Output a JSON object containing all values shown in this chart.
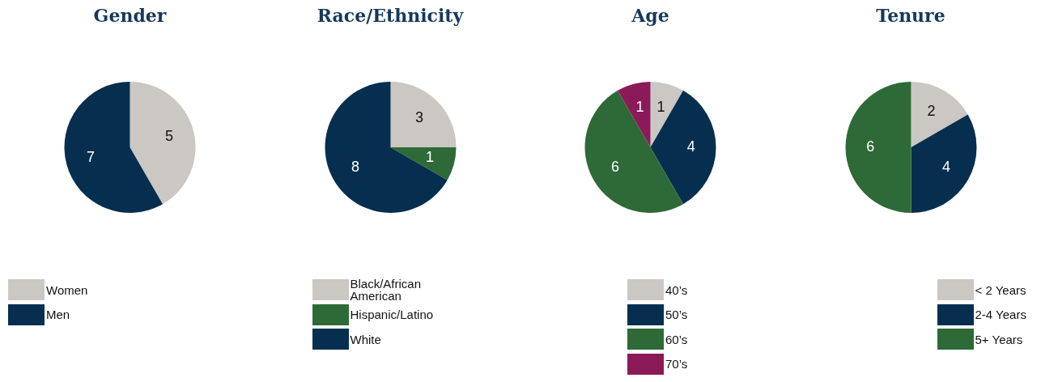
{
  "chart_data": [
    {
      "type": "pie",
      "title": "Gender",
      "categories": [
        "Women",
        "Men"
      ],
      "values": [
        5,
        7
      ],
      "colors": [
        "#cbc7c2",
        "#062f4f"
      ],
      "data_labels": true,
      "legend": "bottom"
    },
    {
      "type": "pie",
      "title": "Race/Ethnicity",
      "categories": [
        "Black/African American",
        "Hispanic/Latino",
        "White"
      ],
      "values": [
        3,
        1,
        8
      ],
      "colors": [
        "#cbc7c2",
        "#2e6a37",
        "#062f4f"
      ],
      "data_labels": true,
      "legend": "bottom"
    },
    {
      "type": "pie",
      "title": "Age",
      "categories": [
        "40’s",
        "50’s",
        "60’s",
        "70’s"
      ],
      "values": [
        1,
        4,
        6,
        1
      ],
      "colors": [
        "#cbc7c2",
        "#062f4f",
        "#2e6a37",
        "#8c1a59"
      ],
      "data_labels": true,
      "legend": "bottom"
    },
    {
      "type": "pie",
      "title": "Tenure",
      "categories": [
        "< 2 Years",
        "2-4 Years",
        "5+ Years"
      ],
      "values": [
        2,
        4,
        6
      ],
      "colors": [
        "#cbc7c2",
        "#062f4f",
        "#2e6a37"
      ],
      "data_labels": true,
      "legend": "bottom"
    }
  ]
}
